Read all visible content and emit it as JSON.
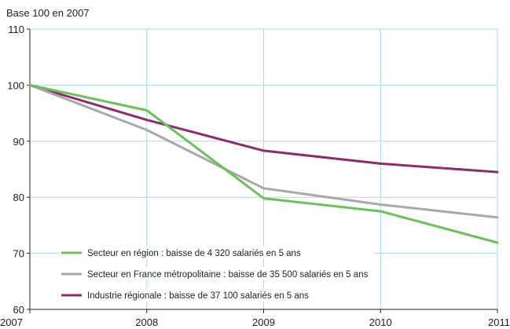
{
  "chart_data": {
    "type": "line",
    "title": "",
    "unit_label": "Base 100 en 2007",
    "xlabel": "",
    "ylabel": "",
    "x": [
      "2007",
      "2008",
      "2009",
      "2010",
      "2011"
    ],
    "ylim": [
      60,
      110
    ],
    "yticks": [
      60,
      70,
      80,
      90,
      100,
      110
    ],
    "grid": true,
    "legend_position": "bottom-left",
    "series": [
      {
        "name": "Secteur en région : baisse de 4 320 salariés en 5 ans",
        "values": [
          100,
          95.5,
          79.8,
          77.5,
          71.9
        ],
        "color": "#6dbf5a"
      },
      {
        "name": "Secteur en France métropolitaine : baisse de 35 500 salariés en 5 ans",
        "values": [
          100,
          92.0,
          81.6,
          78.7,
          76.4
        ],
        "color": "#a8a8a8"
      },
      {
        "name": "Industrie régionale : baisse de 37 100 salariés en 5 ans",
        "values": [
          100,
          93.8,
          88.3,
          86.0,
          84.5
        ],
        "color": "#8b2c6e"
      }
    ],
    "colors": {
      "grid": "#a6dcea",
      "axis": "#222222"
    }
  }
}
